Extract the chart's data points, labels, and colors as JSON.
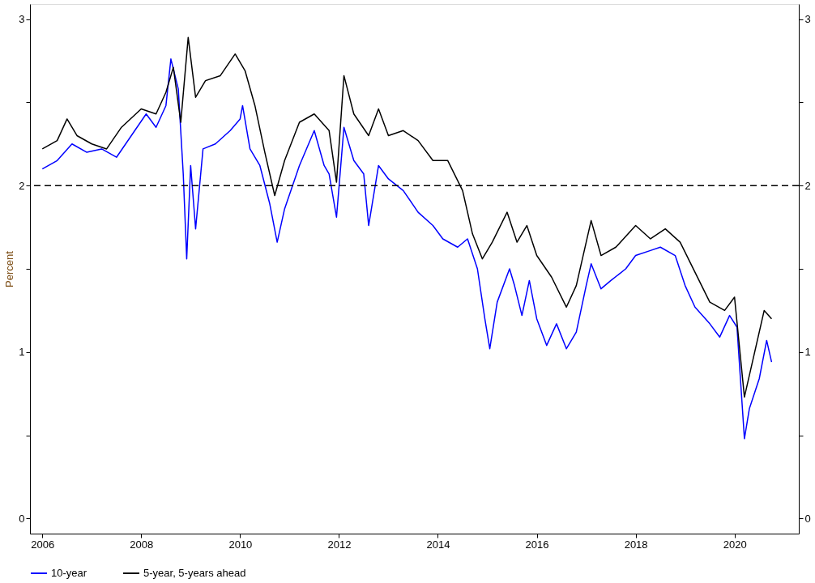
{
  "chart_data": {
    "type": "line",
    "ylabel": "Percent",
    "xlim": [
      2005.75,
      2021.3
    ],
    "xticks": [
      2006,
      2008,
      2010,
      2012,
      2014,
      2016,
      2018,
      2020
    ],
    "ylim": [
      -0.09,
      3.09
    ],
    "yticks": [
      0,
      {
        "value": 0.5,
        "label": null
      },
      1,
      {
        "value": 1.5,
        "label": null
      },
      2,
      {
        "value": 2.5,
        "label": null
      },
      3
    ],
    "y2lim": [
      -0.09,
      3.09
    ],
    "y2ticks": [
      0,
      {
        "value": 0.5,
        "label": null
      },
      1,
      {
        "value": 1.5,
        "label": null
      },
      2,
      {
        "value": 2.5,
        "label": null
      },
      3
    ],
    "grid": false,
    "legend": "bottom",
    "marker": "none",
    "line_style": "solid",
    "ref_lines": [
      {
        "axis": "y",
        "value": 2,
        "color": "#000000",
        "line_style": "dashed"
      }
    ],
    "series": [
      {
        "name": "10-year",
        "color": "#0000ff",
        "x": [
          2006.0,
          2006.3,
          2006.6,
          2006.9,
          2007.2,
          2007.5,
          2007.8,
          2008.1,
          2008.3,
          2008.5,
          2008.6,
          2008.75,
          2008.85,
          2008.92,
          2009.0,
          2009.1,
          2009.25,
          2009.5,
          2009.8,
          2010.0,
          2010.05,
          2010.2,
          2010.4,
          2010.6,
          2010.75,
          2010.9,
          2011.2,
          2011.5,
          2011.7,
          2011.8,
          2011.95,
          2012.1,
          2012.3,
          2012.5,
          2012.6,
          2012.8,
          2013.0,
          2013.3,
          2013.6,
          2013.9,
          2014.1,
          2014.4,
          2014.6,
          2014.8,
          2014.95,
          2015.05,
          2015.2,
          2015.45,
          2015.55,
          2015.7,
          2015.85,
          2016.0,
          2016.2,
          2016.4,
          2016.6,
          2016.8,
          2017.0,
          2017.1,
          2017.3,
          2017.5,
          2017.8,
          2018.0,
          2018.3,
          2018.5,
          2018.8,
          2019.0,
          2019.2,
          2019.5,
          2019.7,
          2019.9,
          2020.05,
          2020.2,
          2020.3,
          2020.5,
          2020.65,
          2020.75
        ],
        "values": [
          2.1,
          2.15,
          2.25,
          2.2,
          2.22,
          2.17,
          2.3,
          2.43,
          2.35,
          2.48,
          2.76,
          2.58,
          2.07,
          1.56,
          2.12,
          1.74,
          2.22,
          2.25,
          2.33,
          2.4,
          2.48,
          2.22,
          2.12,
          1.89,
          1.66,
          1.86,
          2.12,
          2.33,
          2.12,
          2.07,
          1.81,
          2.35,
          2.15,
          2.07,
          1.76,
          2.12,
          2.04,
          1.97,
          1.84,
          1.76,
          1.68,
          1.63,
          1.68,
          1.5,
          1.2,
          1.02,
          1.3,
          1.5,
          1.4,
          1.22,
          1.43,
          1.2,
          1.04,
          1.17,
          1.02,
          1.12,
          1.4,
          1.53,
          1.38,
          1.43,
          1.5,
          1.58,
          1.61,
          1.63,
          1.58,
          1.4,
          1.27,
          1.17,
          1.09,
          1.22,
          1.15,
          0.48,
          0.66,
          0.84,
          1.07,
          0.94
        ]
      },
      {
        "name": "5-year, 5-years ahead",
        "color": "#000000",
        "x": [
          2006.0,
          2006.3,
          2006.5,
          2006.7,
          2007.0,
          2007.3,
          2007.6,
          2008.0,
          2008.3,
          2008.5,
          2008.65,
          2008.8,
          2008.95,
          2009.1,
          2009.3,
          2009.6,
          2009.9,
          2010.1,
          2010.3,
          2010.5,
          2010.7,
          2010.9,
          2011.2,
          2011.5,
          2011.8,
          2011.95,
          2012.1,
          2012.3,
          2012.6,
          2012.8,
          2013.0,
          2013.3,
          2013.6,
          2013.9,
          2014.2,
          2014.5,
          2014.7,
          2014.9,
          2015.1,
          2015.4,
          2015.6,
          2015.8,
          2016.0,
          2016.3,
          2016.6,
          2016.8,
          2017.1,
          2017.3,
          2017.6,
          2018.0,
          2018.3,
          2018.6,
          2018.9,
          2019.2,
          2019.5,
          2019.8,
          2020.0,
          2020.2,
          2020.4,
          2020.6,
          2020.75
        ],
        "values": [
          2.22,
          2.27,
          2.4,
          2.3,
          2.25,
          2.22,
          2.35,
          2.46,
          2.43,
          2.56,
          2.71,
          2.38,
          2.89,
          2.53,
          2.63,
          2.66,
          2.79,
          2.69,
          2.48,
          2.2,
          1.94,
          2.15,
          2.38,
          2.43,
          2.33,
          2.02,
          2.66,
          2.43,
          2.3,
          2.46,
          2.3,
          2.33,
          2.27,
          2.15,
          2.15,
          1.97,
          1.71,
          1.56,
          1.66,
          1.84,
          1.66,
          1.76,
          1.58,
          1.45,
          1.27,
          1.4,
          1.79,
          1.58,
          1.63,
          1.76,
          1.68,
          1.74,
          1.66,
          1.48,
          1.3,
          1.25,
          1.33,
          0.73,
          0.99,
          1.25,
          1.2
        ]
      }
    ]
  }
}
